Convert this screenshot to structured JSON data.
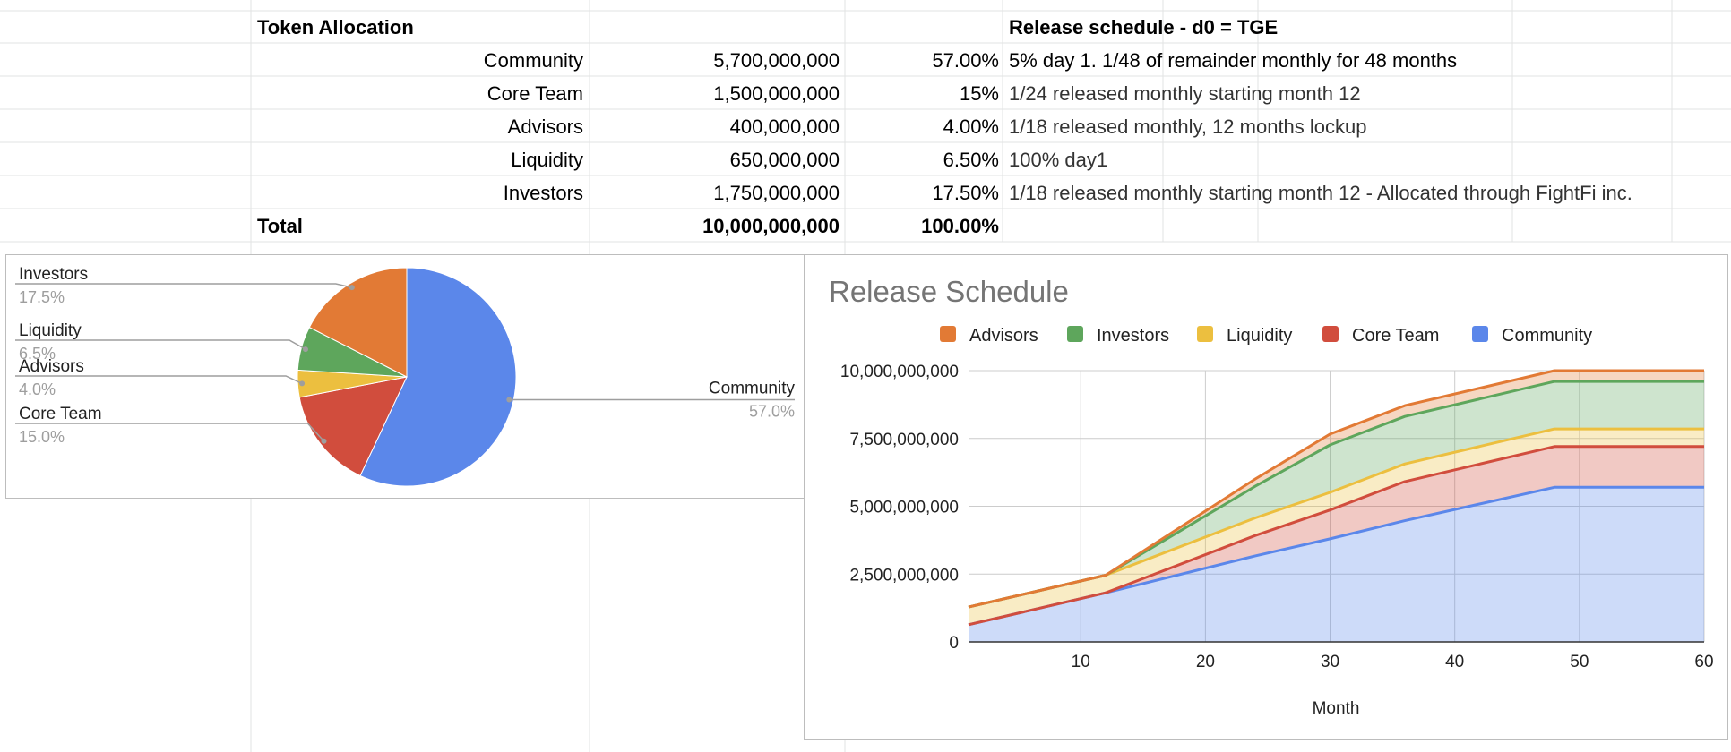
{
  "sheet": {
    "header": {
      "allocation_title": "Token Allocation",
      "schedule_title": "Release schedule - d0 = TGE"
    },
    "rows": [
      {
        "name": "Community",
        "amount": "5,700,000,000",
        "percent": "57.00%",
        "schedule": "5% day 1. 1/48 of remainder monthly for 48 months"
      },
      {
        "name": "Core Team",
        "amount": "1,500,000,000",
        "percent": "15%",
        "schedule": "1/24 released monthly starting month 12"
      },
      {
        "name": "Advisors",
        "amount": "400,000,000",
        "percent": "4.00%",
        "schedule": "1/18 released monthly, 12 months lockup"
      },
      {
        "name": "Liquidity",
        "amount": "650,000,000",
        "percent": "6.50%",
        "schedule": "100% day1"
      },
      {
        "name": "Investors",
        "amount": "1,750,000,000",
        "percent": "17.50%",
        "schedule": "1/18 released monthly starting month 12 - Allocated through FightFi inc."
      }
    ],
    "total": {
      "label": "Total",
      "amount": "10,000,000,000",
      "percent": "100.00%"
    }
  },
  "chart_data": [
    {
      "type": "pie",
      "title": "",
      "slices": [
        {
          "label": "Community",
          "value": 57.0,
          "display": "57.0%",
          "color": "#5b87ea"
        },
        {
          "label": "Core Team",
          "value": 15.0,
          "display": "15.0%",
          "color": "#d14d3d"
        },
        {
          "label": "Advisors",
          "value": 4.0,
          "display": "4.0%",
          "color": "#ecbf3f"
        },
        {
          "label": "Liquidity",
          "value": 6.5,
          "display": "6.5%",
          "color": "#5ea65c"
        },
        {
          "label": "Investors",
          "value": 17.5,
          "display": "17.5%",
          "color": "#e27a35"
        }
      ]
    },
    {
      "type": "area",
      "stacked": true,
      "title": "Release Schedule",
      "xlabel": "Month",
      "ylabel": "",
      "xlim": [
        1,
        60
      ],
      "ylim": [
        0,
        10000000000
      ],
      "xticks": [
        "10",
        "20",
        "30",
        "40",
        "50",
        "60"
      ],
      "yticks": [
        "0",
        "2,500,000,000",
        "5,000,000,000",
        "7,500,000,000",
        "10,000,000,000"
      ],
      "grid": true,
      "legend_position": "top",
      "legend": [
        "Advisors",
        "Investors",
        "Liquidity",
        "Core Team",
        "Community"
      ],
      "x": [
        1,
        12,
        24,
        30,
        36,
        48,
        60
      ],
      "series": [
        {
          "name": "Community",
          "color": "#5b87ea",
          "values": [
            633000000,
            1810000000,
            3170000000,
            3800000000,
            4470000000,
            5700000000,
            5700000000
          ]
        },
        {
          "name": "Core Team",
          "color": "#d14d3d",
          "values": [
            0,
            0,
            750000000,
            1060000000,
            1440000000,
            1500000000,
            1500000000
          ]
        },
        {
          "name": "Liquidity",
          "color": "#ecbf3f",
          "values": [
            650000000,
            650000000,
            650000000,
            650000000,
            650000000,
            650000000,
            650000000
          ]
        },
        {
          "name": "Investors",
          "color": "#5ea65c",
          "values": [
            0,
            0,
            1170000000,
            1750000000,
            1750000000,
            1750000000,
            1750000000
          ]
        },
        {
          "name": "Advisors",
          "color": "#e27a35",
          "values": [
            0,
            0,
            267000000,
            400000000,
            400000000,
            400000000,
            400000000
          ]
        }
      ]
    }
  ]
}
